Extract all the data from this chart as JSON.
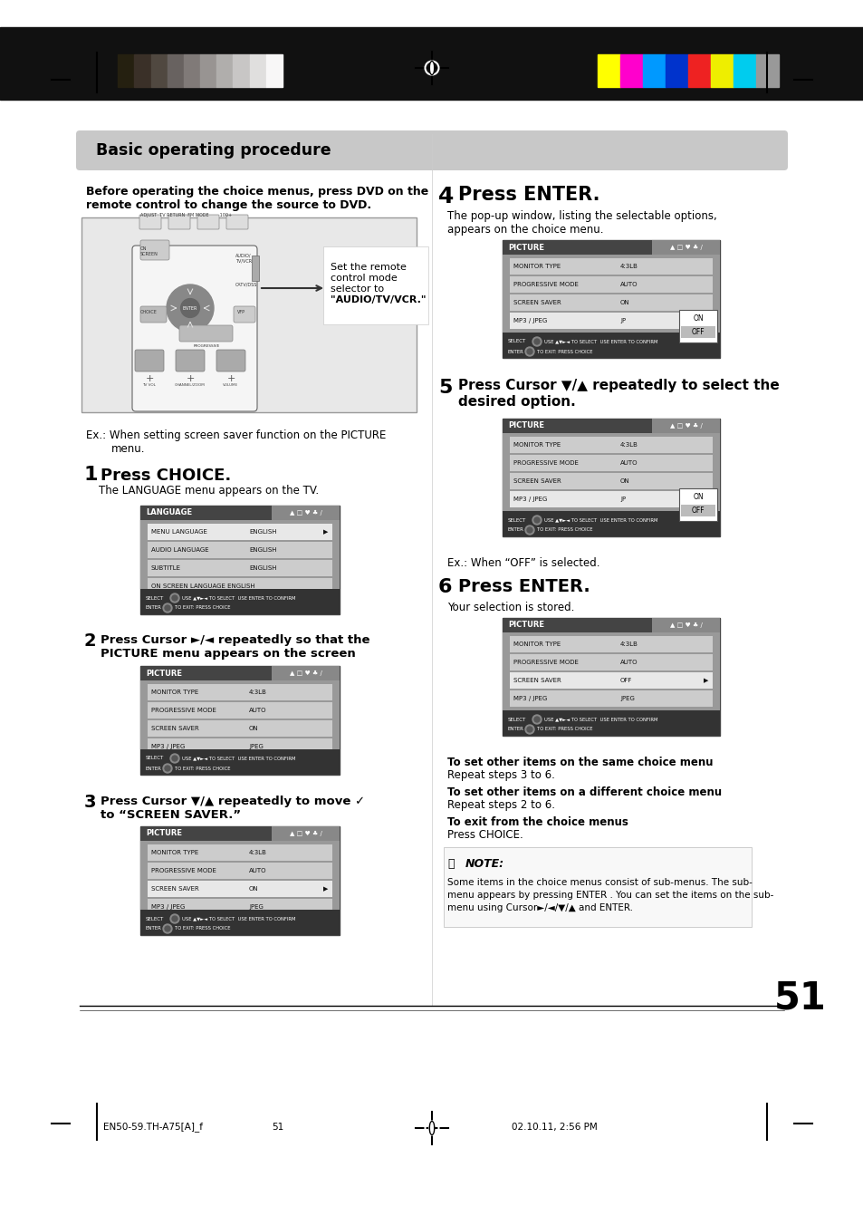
{
  "page_bg": "#ffffff",
  "title_text": "Basic operating procedure",
  "page_number": "51",
  "footer_left": "EN50-59.TH-A75[A]_f",
  "footer_center": "51",
  "footer_right": "02.10.11, 2:56 PM",
  "gray_colors": [
    "#111111",
    "#252010",
    "#3a3028",
    "#504840",
    "#686260",
    "#807a78",
    "#989492",
    "#b0aeac",
    "#c8c6c5",
    "#e0dfde",
    "#f8f7f7"
  ],
  "color_bar_colors": [
    "#ffff00",
    "#ff00cc",
    "#0099ff",
    "#0033cc",
    "#ee2222",
    "#eeee00",
    "#00ccee",
    "#999999"
  ]
}
